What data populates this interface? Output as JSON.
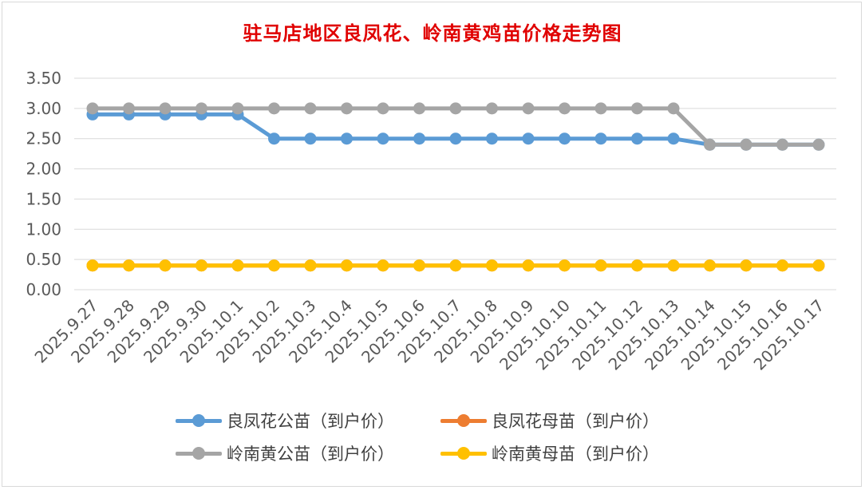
{
  "chart_data": {
    "type": "line",
    "title": "驻马店地区良凤花、岭南黄鸡苗价格走势图",
    "xlabel": "",
    "ylabel": "",
    "ylim": [
      0,
      3.5
    ],
    "yticks": [
      "0.00",
      "0.50",
      "1.00",
      "1.50",
      "2.00",
      "2.50",
      "3.00",
      "3.50"
    ],
    "grid": true,
    "legend_position": "bottom",
    "categories": [
      "2025.9.27",
      "2025.9.28",
      "2025.9.29",
      "2025.9.30",
      "2025.10.1",
      "2025.10.2",
      "2025.10.3",
      "2025.10.4",
      "2025.10.5",
      "2025.10.6",
      "2025.10.7",
      "2025.10.8",
      "2025.10.9",
      "2025.10.10",
      "2025.10.11",
      "2025.10.12",
      "2025.10.13",
      "2025.10.14",
      "2025.10.15",
      "2025.10.16",
      "2025.10.17"
    ],
    "series": [
      {
        "name": "良凤花公苗（到户价）",
        "color": "#5b9bd5",
        "values": [
          2.9,
          2.9,
          2.9,
          2.9,
          2.9,
          2.5,
          2.5,
          2.5,
          2.5,
          2.5,
          2.5,
          2.5,
          2.5,
          2.5,
          2.5,
          2.5,
          2.5,
          2.4,
          2.4,
          2.4,
          2.4
        ]
      },
      {
        "name": "良凤花母苗（到户价）",
        "color": "#ed7d31",
        "values": [
          0.4,
          0.4,
          0.4,
          0.4,
          0.4,
          0.4,
          0.4,
          0.4,
          0.4,
          0.4,
          0.4,
          0.4,
          0.4,
          0.4,
          0.4,
          0.4,
          0.4,
          0.4,
          0.4,
          0.4,
          0.4
        ]
      },
      {
        "name": "岭南黄公苗（到户价）",
        "color": "#a5a5a5",
        "values": [
          3.0,
          3.0,
          3.0,
          3.0,
          3.0,
          3.0,
          3.0,
          3.0,
          3.0,
          3.0,
          3.0,
          3.0,
          3.0,
          3.0,
          3.0,
          3.0,
          3.0,
          2.4,
          2.4,
          2.4,
          2.4
        ]
      },
      {
        "name": "岭南黄母苗（到户价）",
        "color": "#ffc000",
        "values": [
          0.4,
          0.4,
          0.4,
          0.4,
          0.4,
          0.4,
          0.4,
          0.4,
          0.4,
          0.4,
          0.4,
          0.4,
          0.4,
          0.4,
          0.4,
          0.4,
          0.4,
          0.4,
          0.4,
          0.4,
          0.4
        ]
      }
    ]
  }
}
